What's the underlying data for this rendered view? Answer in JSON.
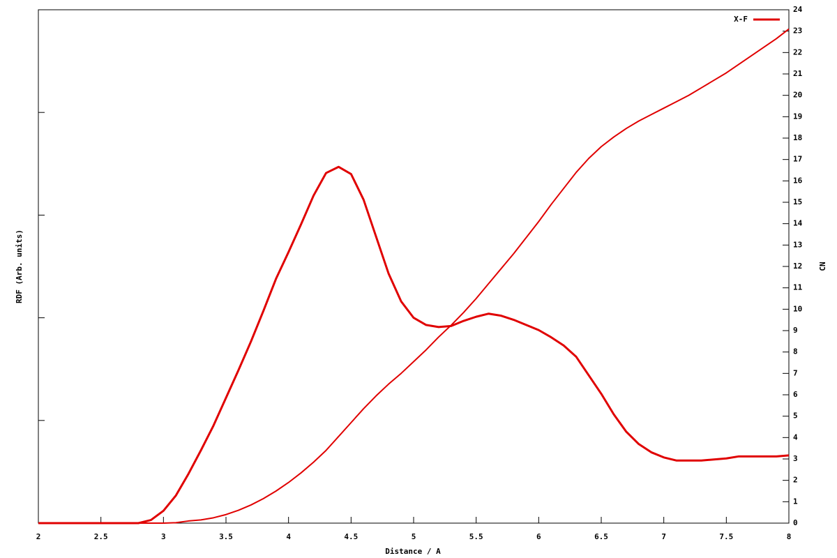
{
  "chart_data": {
    "type": "line",
    "xlabel": "Distance / A",
    "ylabel": "RDF (Arb. units)",
    "y2label": "CN",
    "x": [
      2,
      2.1,
      2.2,
      2.3,
      2.4,
      2.5,
      2.6,
      2.7,
      2.8,
      2.9,
      3,
      3.1,
      3.2,
      3.3,
      3.4,
      3.5,
      3.6,
      3.7,
      3.8,
      3.9,
      4,
      4.1,
      4.2,
      4.3,
      4.4,
      4.5,
      4.6,
      4.7,
      4.8,
      4.9,
      5,
      5.1,
      5.2,
      5.3,
      5.4,
      5.5,
      5.6,
      5.7,
      5.8,
      5.9,
      6,
      6.1,
      6.2,
      6.3,
      6.4,
      6.5,
      6.6,
      6.7,
      6.8,
      6.9,
      7,
      7.1,
      7.2,
      7.3,
      7.4,
      7.5,
      7.6,
      7.7,
      7.8,
      7.9,
      8
    ],
    "series": [
      {
        "name": "X-F",
        "color": "#e00000",
        "values": [
          0,
          0,
          0,
          0,
          0,
          0,
          0,
          0,
          0,
          0.03,
          0.12,
          0.27,
          0.48,
          0.71,
          0.95,
          1.22,
          1.49,
          1.77,
          2.07,
          2.38,
          2.64,
          2.91,
          3.19,
          3.41,
          3.47,
          3.4,
          3.15,
          2.79,
          2.43,
          2.16,
          2.0,
          1.93,
          1.91,
          1.92,
          1.97,
          2.01,
          2.04,
          2.02,
          1.98,
          1.93,
          1.88,
          1.81,
          1.73,
          1.62,
          1.44,
          1.26,
          1.06,
          0.89,
          0.77,
          0.69,
          0.64,
          0.61,
          0.61,
          0.61,
          0.62,
          0.63,
          0.65,
          0.65,
          0.65,
          0.65,
          0.66
        ]
      },
      {
        "color": "#e00000",
        "axis": "y2",
        "values": [
          0,
          0,
          0,
          0,
          0,
          0,
          0,
          0,
          0,
          0,
          0,
          0.02,
          0.1,
          0.15,
          0.25,
          0.4,
          0.6,
          0.85,
          1.15,
          1.5,
          1.9,
          2.35,
          2.85,
          3.4,
          4.05,
          4.7,
          5.35,
          5.95,
          6.5,
          7.0,
          7.55,
          8.1,
          8.7,
          9.25,
          9.85,
          10.5,
          11.2,
          11.9,
          12.6,
          13.35,
          14.1,
          14.9,
          15.65,
          16.4,
          17.05,
          17.6,
          18.05,
          18.45,
          18.8,
          19.1,
          19.4,
          19.7,
          20.0,
          20.35,
          20.7,
          21.05,
          21.45,
          21.85,
          22.25,
          22.65,
          23.1
        ]
      }
    ],
    "xlim": [
      2,
      8
    ],
    "xticks": [
      2,
      2.5,
      3,
      3.5,
      4,
      4.5,
      5,
      5.5,
      6,
      6.5,
      7,
      7.5,
      8
    ],
    "ylim": [
      0,
      5
    ],
    "y2lim": [
      0,
      24
    ],
    "y2ticks": [
      0,
      1,
      2,
      3,
      4,
      5,
      6,
      7,
      8,
      9,
      10,
      11,
      12,
      13,
      14,
      15,
      16,
      17,
      18,
      19,
      20,
      21,
      22,
      23,
      24
    ],
    "legend": "top-right"
  }
}
